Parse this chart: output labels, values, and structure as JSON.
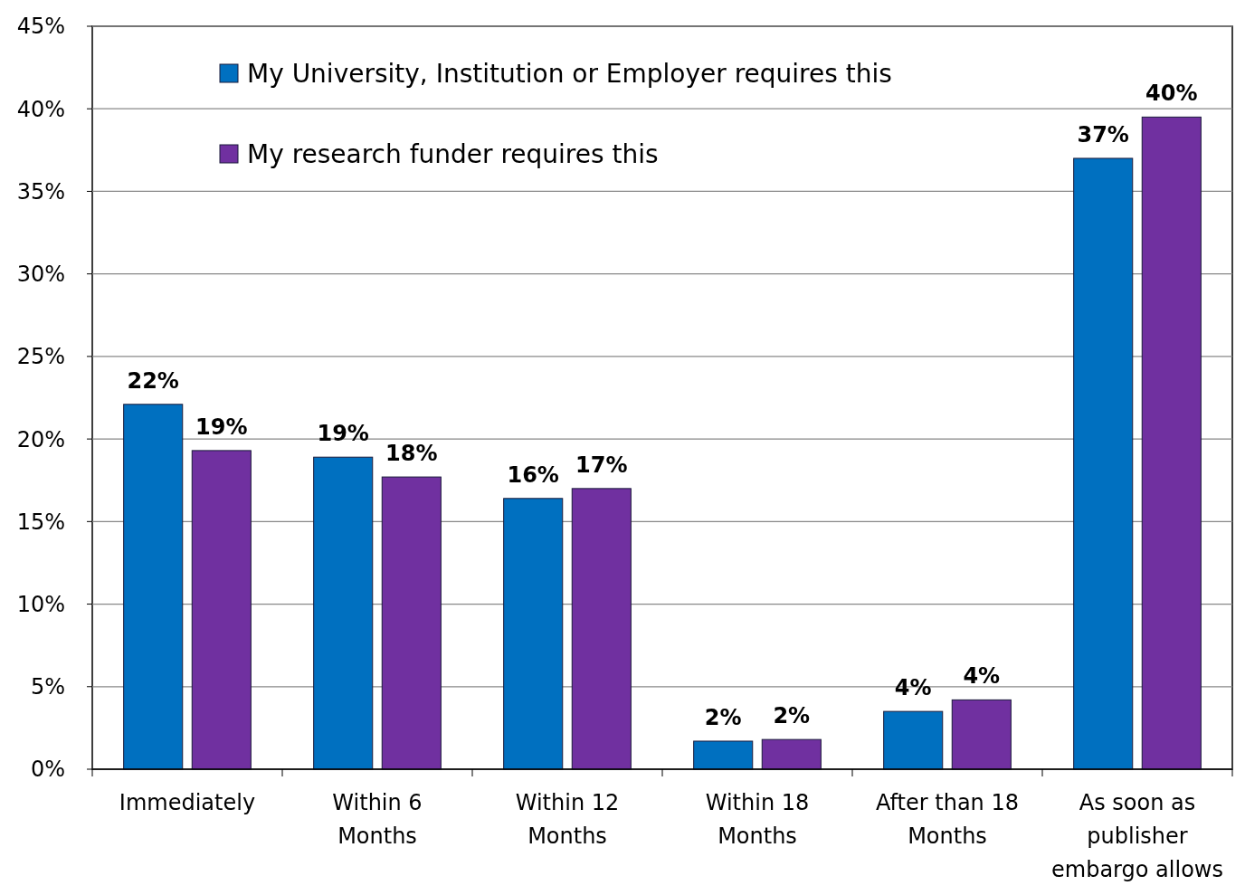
{
  "chart_data": {
    "type": "bar",
    "categories": [
      "Immediately",
      "Within 6 Months",
      "Within 12 Months",
      "Within 18 Months",
      "After than 18 Months",
      "As soon as publisher embargo allows"
    ],
    "series": [
      {
        "name": "My University, Institution or Employer requires this",
        "color": "#0070c0",
        "values": [
          22.1,
          18.9,
          16.4,
          1.7,
          3.5,
          37.0
        ],
        "value_labels": [
          "22%",
          "19%",
          "16%",
          "2%",
          "4%",
          "37%"
        ]
      },
      {
        "name": "My research funder requires this",
        "color": "#7030a0",
        "values": [
          19.3,
          17.7,
          17.0,
          1.8,
          4.2,
          39.5
        ],
        "value_labels": [
          "19%",
          "18%",
          "17%",
          "2%",
          "4%",
          "40%"
        ]
      }
    ],
    "ylim": [
      0,
      45
    ],
    "yticks": [
      {
        "value": 0,
        "label": "0%"
      },
      {
        "value": 5,
        "label": "5%"
      },
      {
        "value": 10,
        "label": "10%"
      },
      {
        "value": 15,
        "label": "15%"
      },
      {
        "value": 20,
        "label": "20%"
      },
      {
        "value": 25,
        "label": "25%"
      },
      {
        "value": 30,
        "label": "30%"
      },
      {
        "value": 35,
        "label": "35%"
      },
      {
        "value": 40,
        "label": "40%"
      },
      {
        "value": 45,
        "label": "45%"
      }
    ],
    "grid": "y",
    "legend": "top left"
  }
}
